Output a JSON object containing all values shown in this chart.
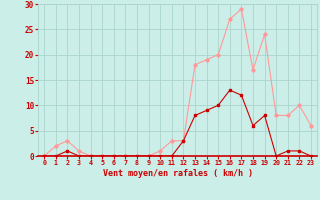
{
  "x": [
    0,
    1,
    2,
    3,
    4,
    5,
    6,
    7,
    8,
    9,
    10,
    11,
    12,
    13,
    14,
    15,
    16,
    17,
    18,
    19,
    20,
    21,
    22,
    23
  ],
  "moyen": [
    0,
    0,
    1,
    0,
    0,
    0,
    0,
    0,
    0,
    0,
    0,
    0,
    3,
    8,
    9,
    10,
    13,
    12,
    6,
    8,
    0,
    1,
    1,
    0
  ],
  "rafales": [
    0,
    2,
    3,
    1,
    0,
    0,
    0,
    0,
    0,
    0,
    1,
    3,
    3,
    18,
    19,
    20,
    27,
    29,
    17,
    24,
    8,
    8,
    10,
    6
  ],
  "color_moyen": "#cc0000",
  "color_rafales": "#ff9999",
  "bg_color": "#cceee8",
  "grid_color": "#aad4cc",
  "xlabel": "Vent moyen/en rafales ( km/h )",
  "ylim": [
    0,
    30
  ],
  "xlim_min": -0.5,
  "xlim_max": 23.5,
  "yticks": [
    0,
    5,
    10,
    15,
    20,
    25,
    30
  ],
  "xticks": [
    0,
    1,
    2,
    3,
    4,
    5,
    6,
    7,
    8,
    9,
    10,
    11,
    12,
    13,
    14,
    15,
    16,
    17,
    18,
    19,
    20,
    21,
    22,
    23
  ],
  "xlabel_fontsize": 6.0,
  "xtick_fontsize": 4.8,
  "ytick_fontsize": 5.5
}
